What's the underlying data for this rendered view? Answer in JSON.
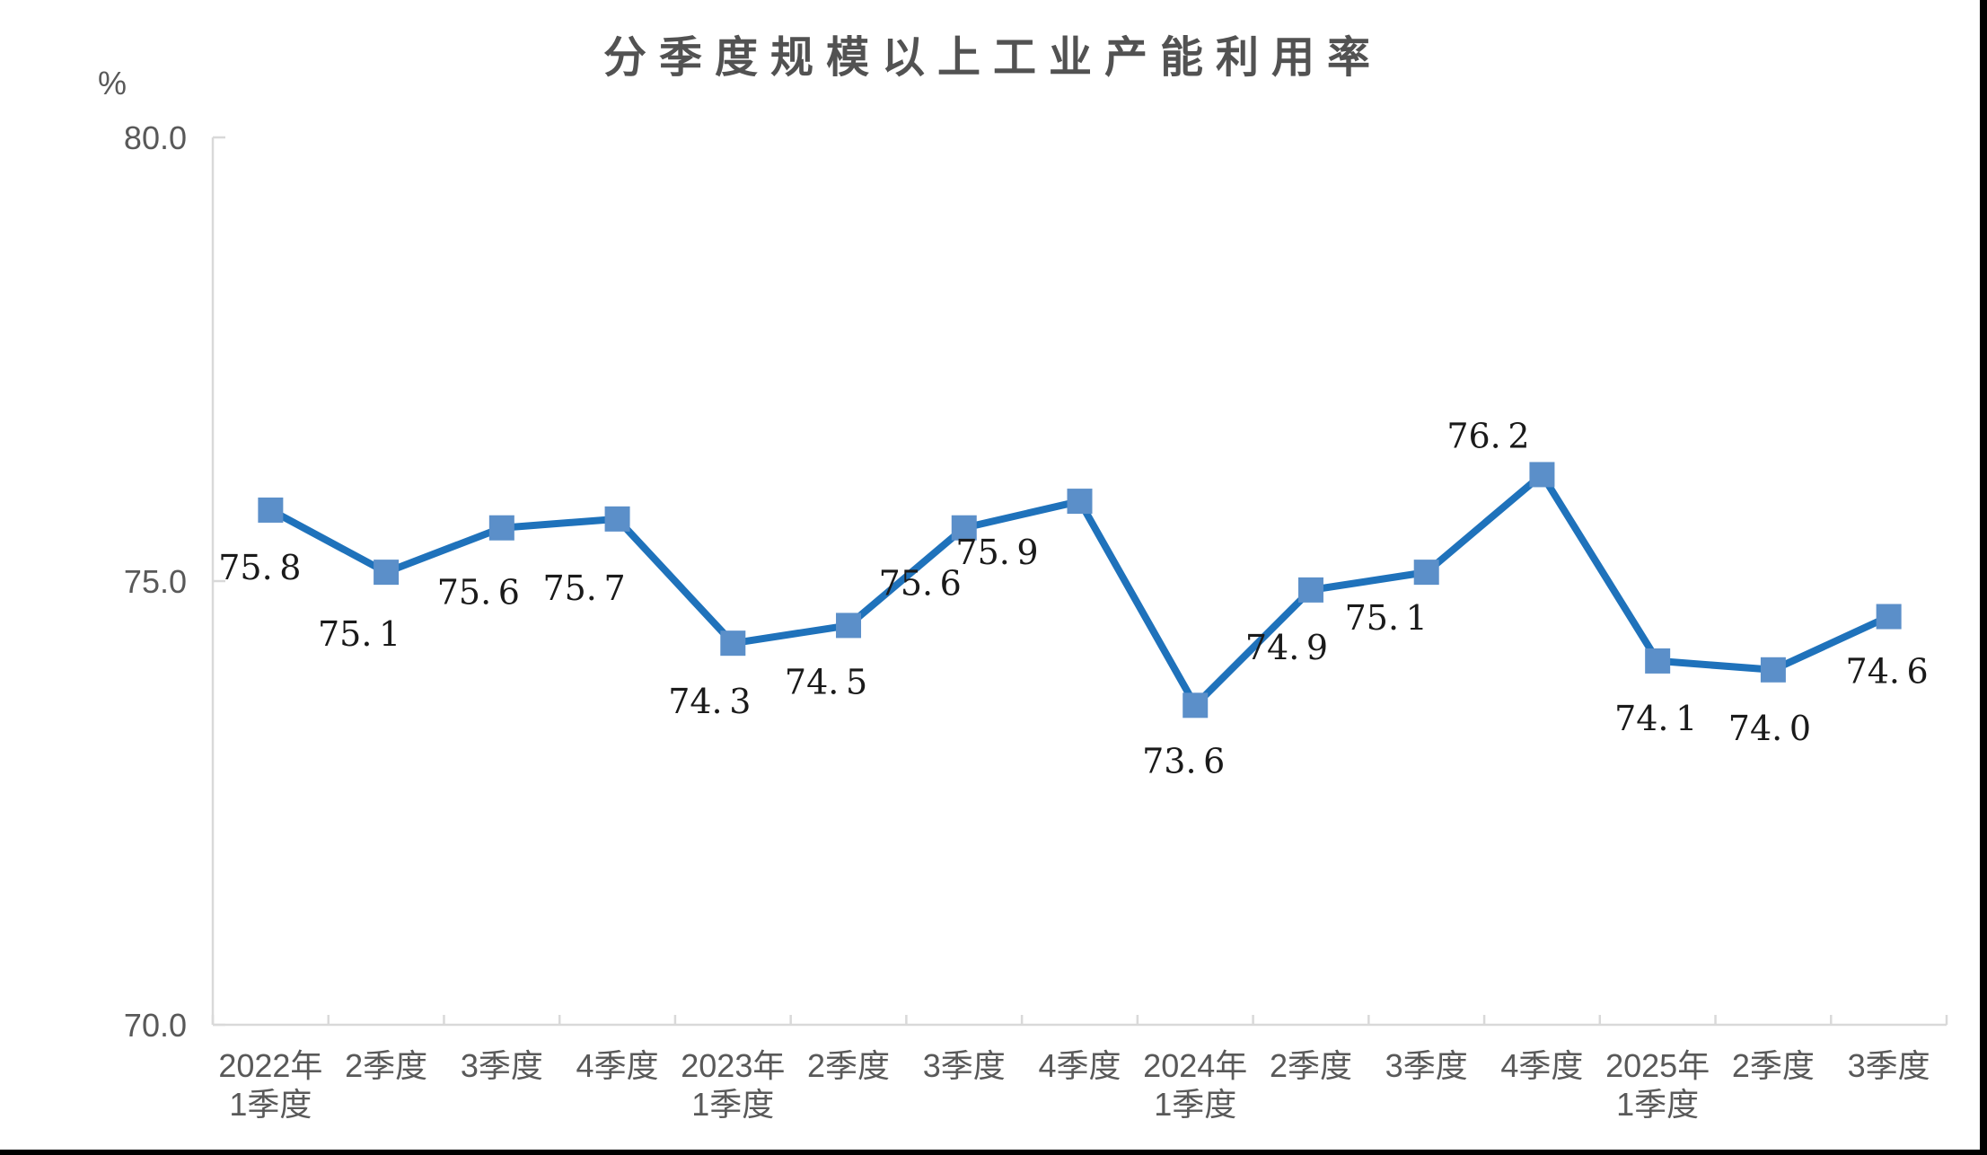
{
  "chart_data": {
    "type": "line",
    "title": "分季度规模以上工业产能利用率",
    "ylabel": "%",
    "xlabel": "",
    "categories": [
      [
        "2022年",
        "1季度"
      ],
      [
        "2季度"
      ],
      [
        "3季度"
      ],
      [
        "4季度"
      ],
      [
        "2023年",
        "1季度"
      ],
      [
        "2季度"
      ],
      [
        "3季度"
      ],
      [
        "4季度"
      ],
      [
        "2024年",
        "1季度"
      ],
      [
        "2季度"
      ],
      [
        "3季度"
      ],
      [
        "4季度"
      ],
      [
        "2025年",
        "1季度"
      ],
      [
        "2季度"
      ],
      [
        "3季度"
      ]
    ],
    "values": [
      75.8,
      75.1,
      75.6,
      75.7,
      74.3,
      74.5,
      75.6,
      75.9,
      73.6,
      74.9,
      75.1,
      76.2,
      74.1,
      74.0,
      74.6
    ],
    "data_labels": [
      "75.8",
      "75.1",
      "75.6",
      "75.7",
      "74.3",
      "74.5",
      "75.6",
      "75.9",
      "73.6",
      "74.9",
      "75.1",
      "76.2",
      "74.1",
      "74.0",
      "74.6"
    ],
    "ylim": [
      70.0,
      80.0
    ],
    "yticks": [
      80.0,
      75.0,
      70.0
    ],
    "grid": false,
    "legend_position": "none",
    "marker_shape": "square",
    "colors": {
      "line": "#1F72BB",
      "marker": "#5B8FC9",
      "axis": "#D9D9D9",
      "tick_text": "#595959",
      "title_text": "#525252",
      "data_label_text": "#1A1A1A"
    }
  }
}
